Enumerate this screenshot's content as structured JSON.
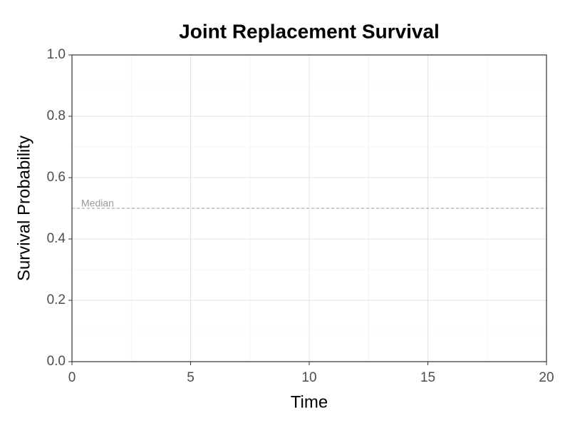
{
  "chart_data": {
    "type": "line",
    "title": "Joint Replacement Survival",
    "x_label": "Time",
    "y_label": "Survival Probability",
    "series": [],
    "xlim": [
      0,
      20
    ],
    "xticks": [
      0,
      5,
      10,
      15,
      20
    ],
    "ylim": [
      0,
      1
    ],
    "yticks": [
      {
        "value": 0,
        "label": "0.0"
      },
      {
        "value": 0.2,
        "label": "0.2"
      },
      {
        "value": 0.4,
        "label": "0.4"
      },
      {
        "value": 0.6,
        "label": "0.6"
      },
      {
        "value": 0.8,
        "label": "0.8"
      },
      {
        "value": 1,
        "label": "1.0"
      }
    ],
    "grid": true,
    "minor_grid": true,
    "reference_lines": [
      {
        "value": 0.5,
        "label": "Median",
        "color": "#999999"
      }
    ]
  }
}
